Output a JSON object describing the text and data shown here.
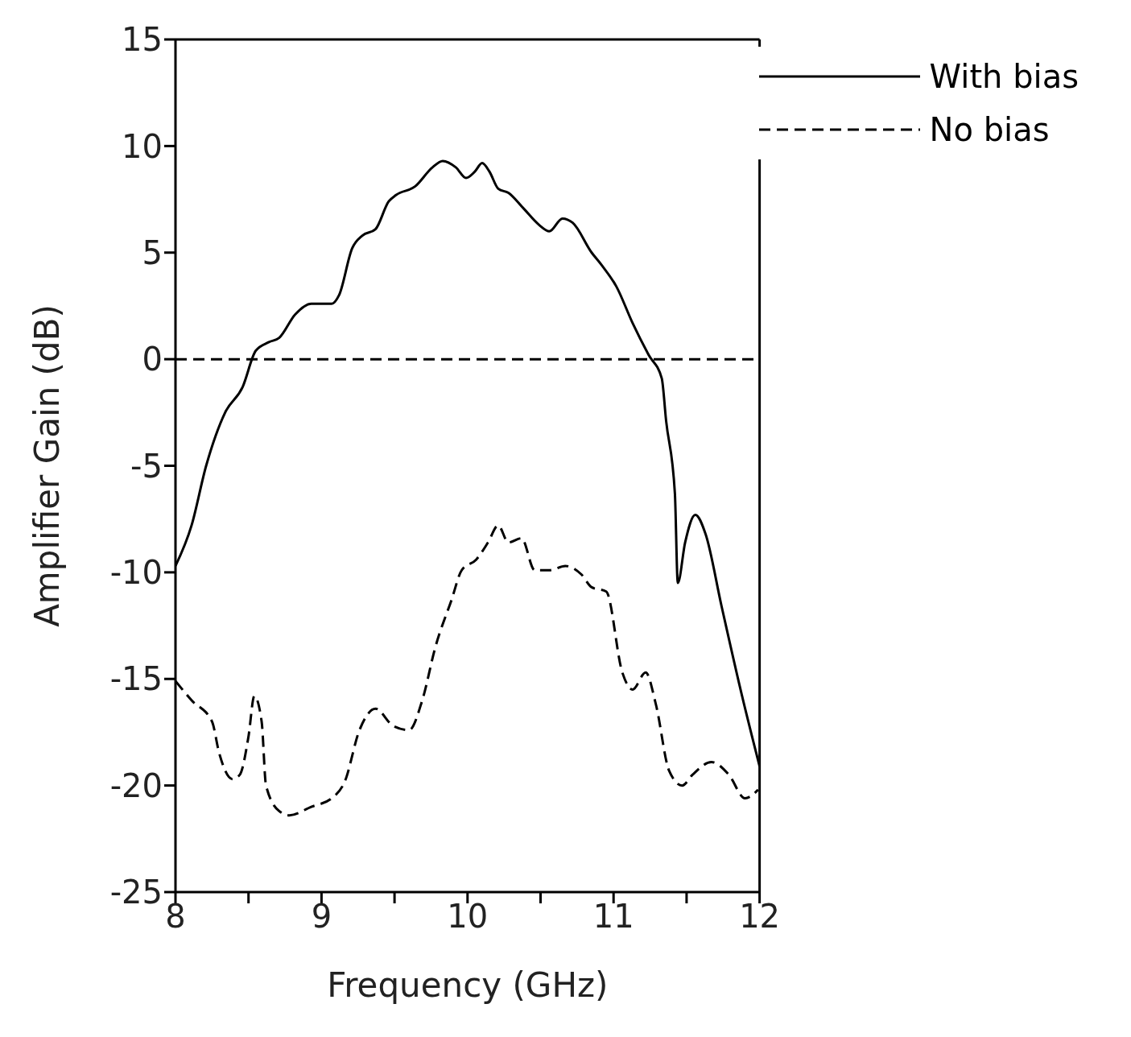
{
  "chart_data": {
    "type": "line",
    "xlabel": "Frequency (GHz)",
    "ylabel": "Amplifier Gain (dB)",
    "xlim": [
      8,
      12
    ],
    "xticks": [
      8,
      {
        "value": 8.5,
        "label": null
      },
      9,
      {
        "value": 9.5,
        "label": null
      },
      10,
      {
        "value": 10.5,
        "label": null
      },
      11,
      {
        "value": 11.5,
        "label": null
      },
      12
    ],
    "ylim": [
      -25,
      15
    ],
    "yticks": [
      -25,
      -20,
      -15,
      -10,
      -5,
      0,
      5,
      10,
      15
    ],
    "grid": false,
    "legend": "top right",
    "marker": "none",
    "ref_lines": [
      {
        "axis": "y",
        "value": 0,
        "color": "#000000",
        "line_style": "dashed"
      }
    ],
    "series": [
      {
        "name": "With bias",
        "color": "#000000",
        "line_style": "solid",
        "x": [
          8.0,
          8.11,
          8.21,
          8.34,
          8.46,
          8.55,
          8.64,
          8.71,
          8.82,
          8.93,
          9.07,
          9.12,
          9.21,
          9.28,
          9.37,
          9.46,
          9.51,
          9.64,
          9.76,
          9.83,
          9.92,
          9.99,
          10.05,
          10.1,
          10.15,
          10.21,
          10.28,
          10.38,
          10.49,
          10.56,
          10.65,
          10.72,
          10.85,
          10.92,
          11.02,
          11.13,
          11.24,
          11.33,
          11.36,
          11.42,
          11.44,
          11.49,
          11.56,
          11.63,
          11.74,
          11.88,
          12.0
        ],
        "values": [
          -9.7,
          -7.8,
          -5.0,
          -2.5,
          -1.3,
          0.4,
          0.8,
          1.0,
          2.1,
          2.6,
          2.6,
          3.0,
          5.2,
          5.8,
          6.1,
          7.4,
          7.7,
          8.1,
          9.0,
          9.3,
          9.0,
          8.5,
          8.8,
          9.2,
          8.8,
          8.0,
          7.8,
          7.1,
          6.3,
          6.0,
          6.6,
          6.4,
          5.0,
          4.4,
          3.4,
          1.7,
          0.2,
          -0.9,
          -2.9,
          -6.3,
          -10.5,
          -8.6,
          -7.3,
          -8.2,
          -11.6,
          -15.8,
          -19.1
        ]
      },
      {
        "name": "No bias",
        "color": "#000000",
        "line_style": "dashed",
        "x": [
          8.0,
          8.11,
          8.25,
          8.3,
          8.39,
          8.44,
          8.5,
          8.54,
          8.59,
          8.62,
          8.71,
          8.78,
          8.93,
          9.07,
          9.16,
          9.26,
          9.37,
          9.49,
          9.6,
          9.69,
          9.78,
          9.89,
          9.96,
          10.06,
          10.14,
          10.21,
          10.28,
          10.37,
          10.46,
          10.56,
          10.67,
          10.78,
          10.85,
          10.95,
          11.06,
          11.13,
          11.22,
          11.29,
          11.38,
          11.47,
          11.54,
          11.67,
          11.79,
          11.9,
          11.99
        ],
        "values": [
          -15.1,
          -16.0,
          -17.0,
          -18.5,
          -19.7,
          -19.5,
          -17.7,
          -15.8,
          -17.0,
          -20.0,
          -21.2,
          -21.4,
          -21.0,
          -20.6,
          -19.8,
          -17.4,
          -16.4,
          -17.2,
          -17.4,
          -16.0,
          -13.5,
          -11.3,
          -9.9,
          -9.4,
          -8.6,
          -7.8,
          -8.6,
          -8.4,
          -9.9,
          -9.9,
          -9.7,
          -10.1,
          -10.7,
          -10.9,
          -14.7,
          -15.5,
          -14.7,
          -16.2,
          -19.3,
          -20.0,
          -19.5,
          -18.9,
          -19.5,
          -20.6,
          -20.2
        ]
      }
    ]
  }
}
